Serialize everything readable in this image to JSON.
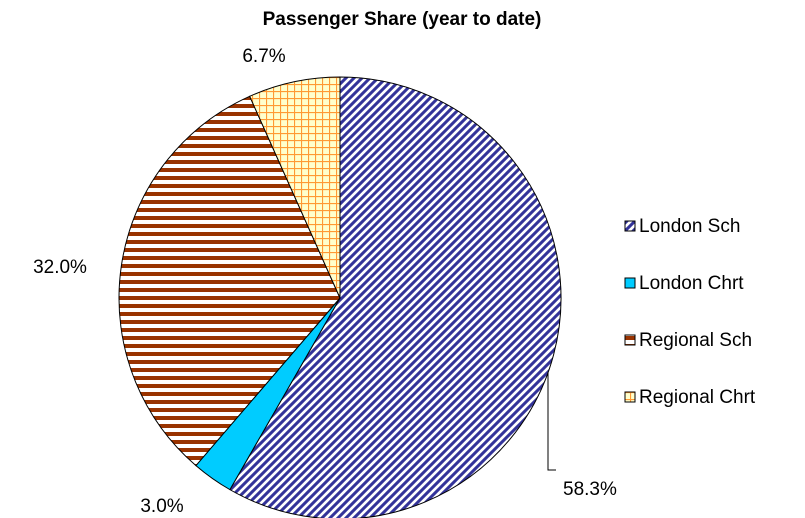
{
  "chart_data": {
    "type": "pie",
    "title": "Passenger Share (year to date)",
    "categories": [
      "London Sch",
      "London Chrt",
      "Regional Sch",
      "Regional Chrt"
    ],
    "values": [
      58.3,
      3.0,
      32.0,
      6.7
    ],
    "value_labels": [
      "58.3%",
      "3.0%",
      "32.0%",
      "6.7%"
    ],
    "colors": [
      "#333399",
      "#00ccff",
      "#993300",
      "#ff9933"
    ],
    "patterns": [
      "diagonal",
      "solid",
      "horizontal",
      "grid"
    ],
    "legend": "right"
  }
}
